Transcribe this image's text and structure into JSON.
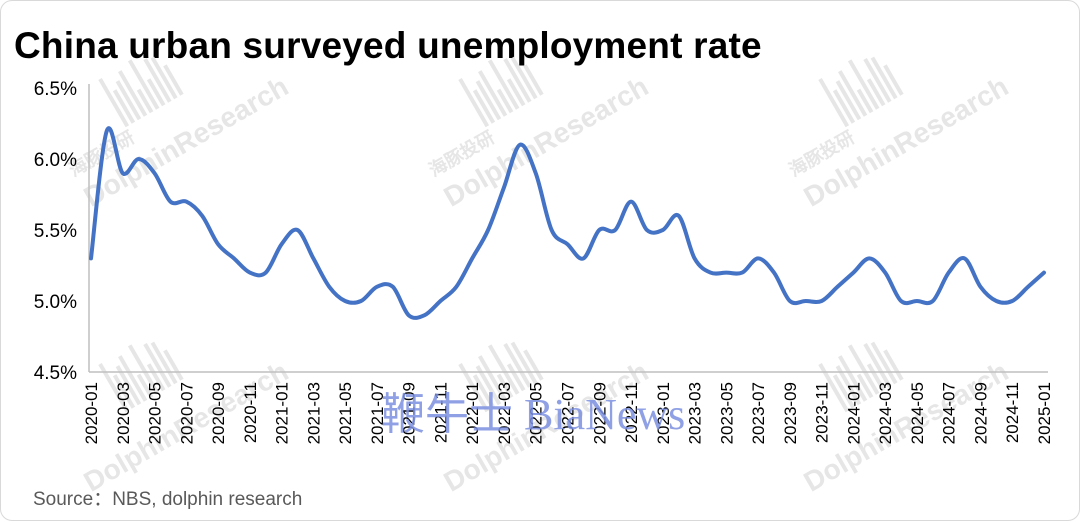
{
  "title": "China urban surveyed unemployment rate",
  "source": "Source：NBS, dolphin research",
  "watermark": {
    "brand": "DolphinResearch",
    "brand_cn": "海豚投研",
    "overlay": "鞭牛士 BiaNews"
  },
  "colors": {
    "line": "#4472C4",
    "axis": "#bfbfbf",
    "tick_text": "#000000",
    "watermark": "#e6e6e6",
    "overlay_watermark": "#7b8fe0"
  },
  "chart_data": {
    "type": "line",
    "title": "China urban surveyed unemployment rate",
    "xlabel": "",
    "ylabel": "",
    "ylim": [
      4.5,
      6.5
    ],
    "y_ticks": [
      "4.5%",
      "5.0%",
      "5.5%",
      "6.0%",
      "6.5%"
    ],
    "y_tick_values": [
      4.5,
      5.0,
      5.5,
      6.0,
      6.5
    ],
    "grid": false,
    "x": [
      "2020-01",
      "2020-02",
      "2020-03",
      "2020-04",
      "2020-05",
      "2020-06",
      "2020-07",
      "2020-08",
      "2020-09",
      "2020-10",
      "2020-11",
      "2020-12",
      "2021-01",
      "2021-02",
      "2021-03",
      "2021-04",
      "2021-05",
      "2021-06",
      "2021-07",
      "2021-08",
      "2021-09",
      "2021-10",
      "2021-11",
      "2021-12",
      "2022-01",
      "2022-02",
      "2022-03",
      "2022-04",
      "2022-05",
      "2022-06",
      "2022-07",
      "2022-08",
      "2022-09",
      "2022-10",
      "2022-11",
      "2022-12",
      "2023-01",
      "2023-02",
      "2023-03",
      "2023-04",
      "2023-05",
      "2023-06",
      "2023-07",
      "2023-08",
      "2023-09",
      "2023-10",
      "2023-11",
      "2023-12",
      "2024-01",
      "2024-02",
      "2024-03",
      "2024-04",
      "2024-05",
      "2024-06",
      "2024-07",
      "2024-08",
      "2024-09",
      "2024-10",
      "2024-11",
      "2024-12",
      "2025-01"
    ],
    "x_tick_labels": [
      "2020-01",
      "2020-03",
      "2020-05",
      "2020-07",
      "2020-09",
      "2020-11",
      "2021-01",
      "2021-03",
      "2021-05",
      "2021-07",
      "2021-09",
      "2021-11",
      "2022-01",
      "2022-03",
      "2022-05",
      "2022-07",
      "2022-09",
      "2022-11",
      "2023-01",
      "2023-03",
      "2023-05",
      "2023-07",
      "2023-09",
      "2023-11",
      "2024-01",
      "2024-03",
      "2024-05",
      "2024-07",
      "2024-09",
      "2024-11",
      "2025-01"
    ],
    "series": [
      {
        "values": [
          5.3,
          6.2,
          5.9,
          6.0,
          5.9,
          5.7,
          5.7,
          5.6,
          5.4,
          5.3,
          5.2,
          5.2,
          5.4,
          5.5,
          5.3,
          5.1,
          5.0,
          5.0,
          5.1,
          5.1,
          4.9,
          4.9,
          5.0,
          5.1,
          5.3,
          5.5,
          5.8,
          6.1,
          5.9,
          5.5,
          5.4,
          5.3,
          5.5,
          5.5,
          5.7,
          5.5,
          5.5,
          5.6,
          5.3,
          5.2,
          5.2,
          5.2,
          5.3,
          5.2,
          5.0,
          5.0,
          5.0,
          5.1,
          5.2,
          5.3,
          5.2,
          5.0,
          5.0,
          5.0,
          5.2,
          5.3,
          5.1,
          5.0,
          5.0,
          5.1,
          5.2
        ]
      }
    ]
  }
}
